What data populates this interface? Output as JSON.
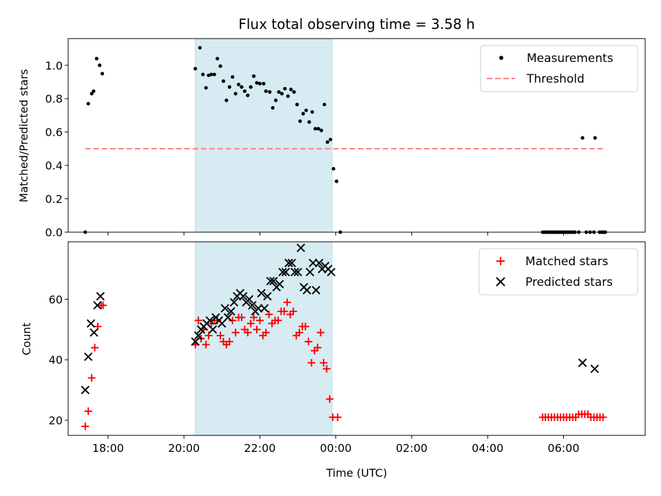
{
  "chart_data": {
    "type": "scatter",
    "title": "Flux total observing time = 3.58 h",
    "xlabel": "Time (UTC)",
    "x_tick_labels": [
      "18:00",
      "20:00",
      "22:00",
      "00:00",
      "02:00",
      "04:00",
      "06:00"
    ],
    "x_tick_values": [
      18,
      20,
      22,
      24,
      26,
      28,
      30
    ],
    "xlim": [
      16.95,
      32.15
    ],
    "shaded_region": {
      "x": [
        20.3,
        23.9
      ],
      "color": "#add8e6"
    },
    "panels": [
      {
        "ylabel": "Matched/Predicted stars",
        "ylim": [
          0,
          1.16
        ],
        "y_ticks": [
          0.0,
          0.2,
          0.4,
          0.6,
          0.8,
          1.0
        ],
        "y_tick_labels": [
          "0.0",
          "0.2",
          "0.4",
          "0.6",
          "0.8",
          "1.0"
        ],
        "legend": {
          "position": "upper right",
          "entries": [
            "Measurements",
            "Threshold"
          ]
        },
        "series": [
          {
            "name": "Measurements",
            "marker": "dot",
            "color": "#000000",
            "points": [
              [
                17.4,
                0.0
              ],
              [
                17.48,
                0.77
              ],
              [
                17.57,
                0.83
              ],
              [
                17.62,
                0.845
              ],
              [
                17.7,
                1.04
              ],
              [
                17.78,
                1.0
              ],
              [
                17.85,
                0.95
              ],
              [
                20.3,
                0.98
              ],
              [
                20.42,
                1.105
              ],
              [
                20.5,
                0.945
              ],
              [
                20.58,
                0.865
              ],
              [
                20.65,
                0.94
              ],
              [
                20.72,
                0.945
              ],
              [
                20.8,
                0.945
              ],
              [
                20.88,
                1.04
              ],
              [
                20.96,
                0.995
              ],
              [
                21.04,
                0.905
              ],
              [
                21.12,
                0.79
              ],
              [
                21.2,
                0.87
              ],
              [
                21.28,
                0.93
              ],
              [
                21.36,
                0.83
              ],
              [
                21.44,
                0.885
              ],
              [
                21.52,
                0.87
              ],
              [
                21.6,
                0.845
              ],
              [
                21.68,
                0.82
              ],
              [
                21.76,
                0.87
              ],
              [
                21.84,
                0.935
              ],
              [
                21.92,
                0.895
              ],
              [
                22.0,
                0.89
              ],
              [
                22.1,
                0.89
              ],
              [
                22.16,
                0.845
              ],
              [
                22.26,
                0.84
              ],
              [
                22.34,
                0.745
              ],
              [
                22.42,
                0.79
              ],
              [
                22.5,
                0.84
              ],
              [
                22.58,
                0.83
              ],
              [
                22.66,
                0.86
              ],
              [
                22.74,
                0.815
              ],
              [
                22.82,
                0.855
              ],
              [
                22.9,
                0.84
              ],
              [
                22.98,
                0.765
              ],
              [
                23.06,
                0.665
              ],
              [
                23.14,
                0.71
              ],
              [
                23.22,
                0.73
              ],
              [
                23.3,
                0.66
              ],
              [
                23.38,
                0.72
              ],
              [
                23.46,
                0.62
              ],
              [
                23.54,
                0.62
              ],
              [
                23.62,
                0.61
              ],
              [
                23.7,
                0.765
              ],
              [
                23.78,
                0.54
              ],
              [
                23.86,
                0.555
              ],
              [
                23.94,
                0.38
              ],
              [
                24.02,
                0.305
              ],
              [
                24.12,
                0.0
              ],
              [
                29.45,
                0.0
              ],
              [
                29.5,
                0.0
              ],
              [
                29.55,
                0.0
              ],
              [
                29.6,
                0.0
              ],
              [
                29.65,
                0.0
              ],
              [
                29.7,
                0.0
              ],
              [
                29.75,
                0.0
              ],
              [
                29.8,
                0.0
              ],
              [
                29.85,
                0.0
              ],
              [
                29.9,
                0.0
              ],
              [
                29.95,
                0.0
              ],
              [
                30.0,
                0.0
              ],
              [
                30.05,
                0.0
              ],
              [
                30.1,
                0.0
              ],
              [
                30.15,
                0.0
              ],
              [
                30.2,
                0.0
              ],
              [
                30.25,
                0.0
              ],
              [
                30.3,
                0.0
              ],
              [
                30.4,
                0.0
              ],
              [
                30.5,
                0.565
              ],
              [
                30.6,
                0.0
              ],
              [
                30.7,
                0.0
              ],
              [
                30.8,
                0.0
              ],
              [
                30.83,
                0.565
              ],
              [
                30.95,
                0.0
              ],
              [
                31.0,
                0.0
              ],
              [
                31.05,
                0.0
              ],
              [
                31.1,
                0.0
              ]
            ]
          },
          {
            "name": "Threshold",
            "marker": "dashed-line",
            "color": "#ff7f7f",
            "points": [
              [
                17.4,
                0.5
              ],
              [
                31.05,
                0.5
              ]
            ]
          }
        ]
      },
      {
        "ylabel": "Count",
        "ylim": [
          15,
          79
        ],
        "y_ticks": [
          20,
          40,
          60
        ],
        "y_tick_labels": [
          "20",
          "40",
          "60"
        ],
        "legend": {
          "position": "upper right",
          "entries": [
            "Matched stars",
            "Predicted stars"
          ]
        },
        "series": [
          {
            "name": "Matched stars",
            "marker": "plus",
            "color": "#ff0000",
            "points": [
              [
                17.4,
                18
              ],
              [
                17.48,
                23
              ],
              [
                17.57,
                34
              ],
              [
                17.65,
                44
              ],
              [
                17.73,
                51
              ],
              [
                17.82,
                58
              ],
              [
                17.87,
                58
              ],
              [
                20.3,
                45
              ],
              [
                20.38,
                53
              ],
              [
                20.45,
                47
              ],
              [
                20.52,
                50
              ],
              [
                20.58,
                45
              ],
              [
                20.65,
                48
              ],
              [
                20.72,
                52
              ],
              [
                20.8,
                53
              ],
              [
                20.88,
                53
              ],
              [
                20.96,
                48
              ],
              [
                21.04,
                46
              ],
              [
                21.12,
                45
              ],
              [
                21.2,
                46
              ],
              [
                21.28,
                53
              ],
              [
                21.36,
                49
              ],
              [
                21.44,
                54
              ],
              [
                21.52,
                54
              ],
              [
                21.6,
                50
              ],
              [
                21.68,
                49
              ],
              [
                21.76,
                52
              ],
              [
                21.84,
                54
              ],
              [
                21.92,
                50
              ],
              [
                22.0,
                53
              ],
              [
                22.08,
                48
              ],
              [
                22.16,
                49
              ],
              [
                22.24,
                55
              ],
              [
                22.32,
                52
              ],
              [
                22.4,
                53
              ],
              [
                22.48,
                53
              ],
              [
                22.56,
                56
              ],
              [
                22.64,
                56
              ],
              [
                22.72,
                59
              ],
              [
                22.8,
                55
              ],
              [
                22.88,
                56
              ],
              [
                22.96,
                48
              ],
              [
                23.04,
                49
              ],
              [
                23.12,
                51
              ],
              [
                23.2,
                51
              ],
              [
                23.28,
                46
              ],
              [
                23.36,
                39
              ],
              [
                23.44,
                43
              ],
              [
                23.52,
                44
              ],
              [
                23.6,
                49
              ],
              [
                23.68,
                39
              ],
              [
                23.76,
                37
              ],
              [
                23.84,
                27
              ],
              [
                23.92,
                21
              ],
              [
                24.05,
                21
              ],
              [
                29.45,
                21
              ],
              [
                29.52,
                21
              ],
              [
                29.6,
                21
              ],
              [
                29.68,
                21
              ],
              [
                29.76,
                21
              ],
              [
                29.84,
                21
              ],
              [
                29.92,
                21
              ],
              [
                30.0,
                21
              ],
              [
                30.08,
                21
              ],
              [
                30.16,
                21
              ],
              [
                30.24,
                21
              ],
              [
                30.32,
                21
              ],
              [
                30.4,
                22
              ],
              [
                30.48,
                22
              ],
              [
                30.56,
                22
              ],
              [
                30.64,
                22
              ],
              [
                30.72,
                21
              ],
              [
                30.8,
                21
              ],
              [
                30.88,
                21
              ],
              [
                30.96,
                21
              ],
              [
                31.04,
                21
              ]
            ]
          },
          {
            "name": "Predicted stars",
            "marker": "x",
            "color": "#000000",
            "points": [
              [
                17.4,
                30
              ],
              [
                17.48,
                41
              ],
              [
                17.55,
                52
              ],
              [
                17.63,
                49
              ],
              [
                17.72,
                58
              ],
              [
                17.8,
                61
              ],
              [
                20.3,
                46
              ],
              [
                20.38,
                48
              ],
              [
                20.45,
                50
              ],
              [
                20.52,
                51
              ],
              [
                20.6,
                52
              ],
              [
                20.68,
                53
              ],
              [
                20.76,
                50
              ],
              [
                20.84,
                54
              ],
              [
                20.92,
                53
              ],
              [
                21.0,
                52
              ],
              [
                21.08,
                57
              ],
              [
                21.16,
                54
              ],
              [
                21.24,
                56
              ],
              [
                21.32,
                59
              ],
              [
                21.4,
                61
              ],
              [
                21.48,
                62
              ],
              [
                21.56,
                61
              ],
              [
                21.64,
                59
              ],
              [
                21.72,
                60
              ],
              [
                21.8,
                58
              ],
              [
                21.88,
                56
              ],
              [
                21.96,
                57
              ],
              [
                22.04,
                62
              ],
              [
                22.12,
                57
              ],
              [
                22.2,
                61
              ],
              [
                22.28,
                66
              ],
              [
                22.36,
                66
              ],
              [
                22.44,
                64
              ],
              [
                22.52,
                65
              ],
              [
                22.6,
                69
              ],
              [
                22.68,
                69
              ],
              [
                22.76,
                72
              ],
              [
                22.84,
                72
              ],
              [
                22.92,
                69
              ],
              [
                23.0,
                69
              ],
              [
                23.08,
                77
              ],
              [
                23.16,
                64
              ],
              [
                23.24,
                63
              ],
              [
                23.32,
                69
              ],
              [
                23.4,
                72
              ],
              [
                23.48,
                63
              ],
              [
                23.56,
                72
              ],
              [
                23.64,
                70
              ],
              [
                23.72,
                71
              ],
              [
                23.8,
                70
              ],
              [
                23.88,
                69
              ],
              [
                30.5,
                39
              ],
              [
                30.82,
                37
              ]
            ]
          }
        ]
      }
    ]
  }
}
